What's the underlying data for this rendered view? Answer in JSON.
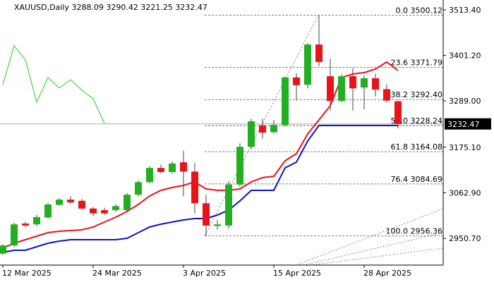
{
  "chart_data": {
    "type": "candlestick",
    "title": "XAUUSD,Daily  3288.09 3290.42 3221.25 3232.47",
    "x": [
      "12 Mar 2025",
      null,
      null,
      null,
      null,
      null,
      null,
      null,
      "24 Mar 2025",
      null,
      null,
      null,
      null,
      null,
      null,
      null,
      "3 Apr 2025",
      null,
      null,
      null,
      null,
      null,
      null,
      null,
      "15 Apr 2025",
      null,
      null,
      null,
      null,
      null,
      null,
      null,
      "28 Apr 2025",
      null,
      null,
      null
    ],
    "open": [
      2913,
      2933,
      2987,
      2985,
      3002,
      3033,
      3046,
      3043,
      3024,
      3020,
      3020,
      3020,
      3058,
      3089,
      3124,
      3114,
      3138,
      3115,
      3037,
      2981,
      2982,
      3083,
      3176,
      3229,
      3212,
      3230,
      3347,
      3329,
      3428,
      3350,
      3289,
      3350,
      3322,
      3345,
      3318,
      3288.09
    ],
    "high": [
      2936,
      2989,
      2992,
      3008,
      3038,
      3050,
      3054,
      3048,
      3028,
      3026,
      3034,
      3062,
      3093,
      3128,
      3132,
      3140,
      3167,
      3136,
      3058,
      2996,
      3091,
      3185,
      3245,
      3245,
      3242,
      3350,
      3357,
      3432,
      3500,
      3393,
      3355,
      3370,
      3352,
      3356,
      3330,
      3290.42
    ],
    "low": [
      2910,
      2930,
      2978,
      2980,
      2999,
      3031,
      3036,
      3021,
      3005,
      3008,
      3016,
      3017,
      3054,
      3086,
      3110,
      3110,
      3054,
      3012,
      2957,
      2972,
      2975,
      3078,
      3170,
      3196,
      3208,
      3226,
      3290,
      3320,
      3375,
      3266,
      3286,
      3266,
      3268,
      3300,
      3285,
      3221.25
    ],
    "close": [
      2933,
      2985,
      2982,
      3003,
      3034,
      3046,
      3039,
      3024,
      3012,
      3012,
      3030,
      3058,
      3089,
      3124,
      3114,
      3135,
      3115,
      3037,
      2982,
      2985,
      3083,
      3176,
      3239,
      3211,
      3230,
      3347,
      3328,
      3428,
      3385,
      3289,
      3350,
      3320,
      3345,
      3317,
      3290,
      3232.47
    ],
    "up_color": "#22b022",
    "down_color": "#e8141a",
    "series": [
      {
        "color": "#e8141a",
        "values": [
          2926.4,
          2938.5,
          2947.2,
          2955.9,
          2964.6,
          2968.1,
          2969.8,
          2971.5,
          2978.5,
          2990.6,
          3002.8,
          3016.7,
          3034.1,
          3054.9,
          3068.8,
          3075.7,
          3080.9,
          3089.6,
          3072.3,
          3068.8,
          3068.8,
          3072.3,
          3089.6,
          3100.1,
          3103.5,
          3141.7,
          3159.1,
          3207.7,
          3242.5,
          3277.2,
          3346.7,
          3355.3,
          3358.8,
          3367.5,
          3384.9,
          3364.0
        ]
      },
      {
        "color": "#0a14c8",
        "values": [
          2916.0,
          2921.2,
          2921.2,
          2929.9,
          2938.5,
          2943.7,
          2947.2,
          2947.2,
          2947.2,
          2947.2,
          2947.2,
          2950.7,
          2964.6,
          2978.5,
          2985.4,
          2990.6,
          2995.8,
          2999.3,
          2999.3,
          3008.0,
          3020.2,
          3042.7,
          3068.8,
          3068.8,
          3068.8,
          3124.4,
          3138.3,
          3190.4,
          3228.6,
          3228.6,
          3228.6,
          3228.6,
          3228.6,
          3228.6,
          3228.6,
          3228.6
        ]
      },
      {
        "color": "#22cc22",
        "values": [
          3329.3,
          3424.8,
          3390.1,
          3285.9,
          3346.7,
          3320.6,
          3341.5,
          3315.4,
          3294.6,
          3233.8,
          null,
          null,
          null,
          null,
          null,
          null,
          null,
          null,
          null,
          null,
          null,
          null,
          null,
          null,
          null,
          null,
          null,
          null,
          null,
          null,
          null,
          null,
          null,
          null,
          null,
          null
        ]
      }
    ],
    "fib_levels": [
      {
        "value": 3500.12,
        "label": "0.0 3500.12"
      },
      {
        "value": 3371.79,
        "label": "23.6 3371.79"
      },
      {
        "value": 3292.4,
        "label": "38.2 3292.40"
      },
      {
        "value": 3228.24,
        "label": "50.0 3228.24"
      },
      {
        "value": 3164.08,
        "label": "61.8 3164.08"
      },
      {
        "value": 3084.69,
        "label": "76.4 3084.69"
      },
      {
        "value": 2956.36,
        "label": "100.0 2956.36"
      }
    ],
    "last_price": 3232.47,
    "ylim": [
      2884.7,
      3537.7
    ],
    "yticks": [
      {
        "value": 3513.4,
        "label": "3513.40"
      },
      {
        "value": 3401.2,
        "label": "3401.20"
      },
      {
        "value": 3289,
        "label": "3289.00"
      },
      {
        "value": 3175.1,
        "label": "3175.10"
      },
      {
        "value": 3062.9,
        "label": "3062.90"
      },
      {
        "value": 2950.7,
        "label": "2950.70"
      }
    ]
  }
}
